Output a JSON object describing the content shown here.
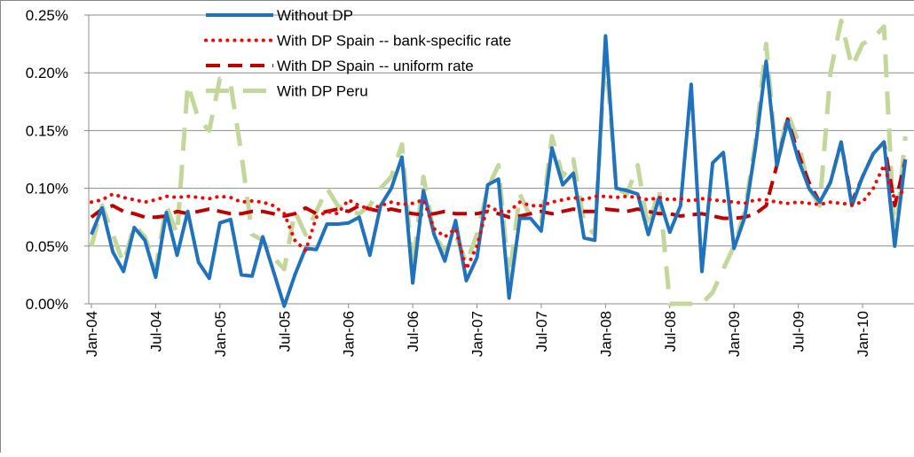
{
  "chart_data": {
    "type": "line",
    "categories": [
      "Jan-04",
      null,
      null,
      null,
      null,
      null,
      "Jul-04",
      null,
      null,
      null,
      null,
      null,
      "Jan-05",
      null,
      null,
      null,
      null,
      null,
      "Jul-05",
      null,
      null,
      null,
      null,
      null,
      "Jan-06",
      null,
      null,
      null,
      null,
      null,
      "Jul-06",
      null,
      null,
      null,
      null,
      null,
      "Jan-07",
      null,
      null,
      null,
      null,
      null,
      "Jul-07",
      null,
      null,
      null,
      null,
      null,
      "Jan-08",
      null,
      null,
      null,
      null,
      null,
      "Jul-08",
      null,
      null,
      null,
      null,
      null,
      "Jan-09",
      null,
      null,
      null,
      null,
      null,
      "Jul-09",
      null,
      null,
      null,
      null,
      null,
      "Jan-10",
      null,
      null,
      null,
      null
    ],
    "series": [
      {
        "name": "Without DP",
        "color": "#1f72bd",
        "dash": "solid",
        "values": [
          0.06,
          0.083,
          0.045,
          0.028,
          0.066,
          0.055,
          0.023,
          0.079,
          0.042,
          0.08,
          0.036,
          0.022,
          0.07,
          0.073,
          0.025,
          0.024,
          0.058,
          0.028,
          -0.002,
          0.025,
          0.048,
          0.047,
          0.069,
          0.069,
          0.07,
          0.075,
          0.042,
          0.085,
          0.1,
          0.127,
          0.018,
          0.098,
          0.06,
          0.037,
          0.072,
          0.02,
          0.04,
          0.103,
          0.108,
          0.005,
          0.074,
          0.074,
          0.063,
          0.135,
          0.103,
          0.113,
          0.057,
          0.055,
          0.232,
          0.1,
          0.098,
          0.095,
          0.06,
          0.092,
          0.062,
          0.085,
          0.19,
          0.028,
          0.122,
          0.131,
          0.048,
          0.075,
          0.135,
          0.21,
          0.12,
          0.158,
          0.125,
          0.1,
          0.088,
          0.105,
          0.14,
          0.085,
          0.11,
          0.13,
          0.14,
          0.05,
          0.125
        ]
      },
      {
        "name": "With DP Spain -- bank-specific rate",
        "color": "#ff0000",
        "dash": "dotted",
        "values": [
          0.088,
          0.09,
          0.095,
          0.092,
          0.09,
          0.088,
          0.09,
          0.093,
          0.092,
          0.093,
          0.092,
          0.091,
          0.093,
          0.092,
          0.088,
          0.089,
          0.088,
          0.085,
          0.078,
          0.055,
          0.046,
          0.075,
          0.08,
          0.078,
          0.09,
          0.085,
          0.082,
          0.085,
          0.088,
          0.086,
          0.087,
          0.09,
          0.065,
          0.058,
          0.065,
          0.03,
          0.05,
          0.085,
          0.08,
          0.08,
          0.088,
          0.085,
          0.085,
          0.088,
          0.09,
          0.092,
          0.09,
          0.093,
          0.093,
          0.092,
          0.093,
          0.092,
          0.09,
          0.092,
          0.09,
          0.091,
          0.089,
          0.091,
          0.09,
          0.089,
          0.088,
          0.087,
          0.09,
          0.09,
          0.088,
          0.087,
          0.088,
          0.087,
          0.086,
          0.088,
          0.087,
          0.086,
          0.088,
          0.1,
          0.12,
          0.09,
          0.1
        ]
      },
      {
        "name": "With DP Spain -- uniform rate",
        "color": "#c00000",
        "dash": "dashed",
        "values": [
          0.075,
          0.082,
          0.085,
          0.08,
          0.078,
          0.075,
          0.075,
          0.076,
          0.08,
          0.078,
          0.08,
          0.082,
          0.08,
          0.078,
          0.078,
          0.08,
          0.08,
          0.078,
          0.076,
          0.078,
          0.083,
          0.078,
          0.08,
          0.082,
          0.08,
          0.085,
          0.082,
          0.08,
          0.082,
          0.08,
          0.078,
          0.077,
          0.078,
          0.08,
          0.078,
          0.078,
          0.078,
          0.08,
          0.078,
          0.075,
          0.076,
          0.078,
          0.08,
          0.078,
          0.08,
          0.082,
          0.08,
          0.08,
          0.082,
          0.081,
          0.08,
          0.082,
          0.08,
          0.078,
          0.078,
          0.076,
          0.077,
          0.078,
          0.076,
          0.074,
          0.074,
          0.075,
          0.078,
          0.085,
          0.12,
          0.16,
          0.13,
          0.105,
          0.088,
          0.105,
          0.14,
          0.088,
          0.11,
          0.13,
          0.14,
          0.085,
          0.125
        ]
      },
      {
        "name": "With DP Peru",
        "color": "#c4d79b",
        "dash": "long-dash",
        "values": [
          0.05,
          0.085,
          0.06,
          0.035,
          0.068,
          0.058,
          0.03,
          0.085,
          0.06,
          0.19,
          0.16,
          0.15,
          0.195,
          0.19,
          0.13,
          0.06,
          0.055,
          0.04,
          0.03,
          0.08,
          0.06,
          0.08,
          0.1,
          0.085,
          0.08,
          0.078,
          0.085,
          0.1,
          0.11,
          0.138,
          0.03,
          0.11,
          0.06,
          0.045,
          0.06,
          0.035,
          0.06,
          0.1,
          0.12,
          0.02,
          0.095,
          0.075,
          0.07,
          0.145,
          0.11,
          0.125,
          0.07,
          0.06,
          0.22,
          0.1,
          0.095,
          0.12,
          0.065,
          0.1,
          0.0,
          0.0,
          0.0,
          0.0,
          0.01,
          0.03,
          0.05,
          0.08,
          0.14,
          0.225,
          0.12,
          0.165,
          0.14,
          0.1,
          0.085,
          0.2,
          0.245,
          0.205,
          0.225,
          0.23,
          0.24,
          0.05,
          0.145
        ]
      }
    ],
    "ylim": [
      0,
      0.25
    ],
    "yticks": [
      {
        "value": 0,
        "label": "0.00%"
      },
      {
        "value": 0.05,
        "label": "0.05%"
      },
      {
        "value": 0.1,
        "label": "0.10%"
      },
      {
        "value": 0.15,
        "label": "0.15%"
      },
      {
        "value": 0.2,
        "label": "0.20%"
      },
      {
        "value": 0.25,
        "label": "0.25%"
      }
    ],
    "grid": true,
    "legend": "top-left"
  }
}
